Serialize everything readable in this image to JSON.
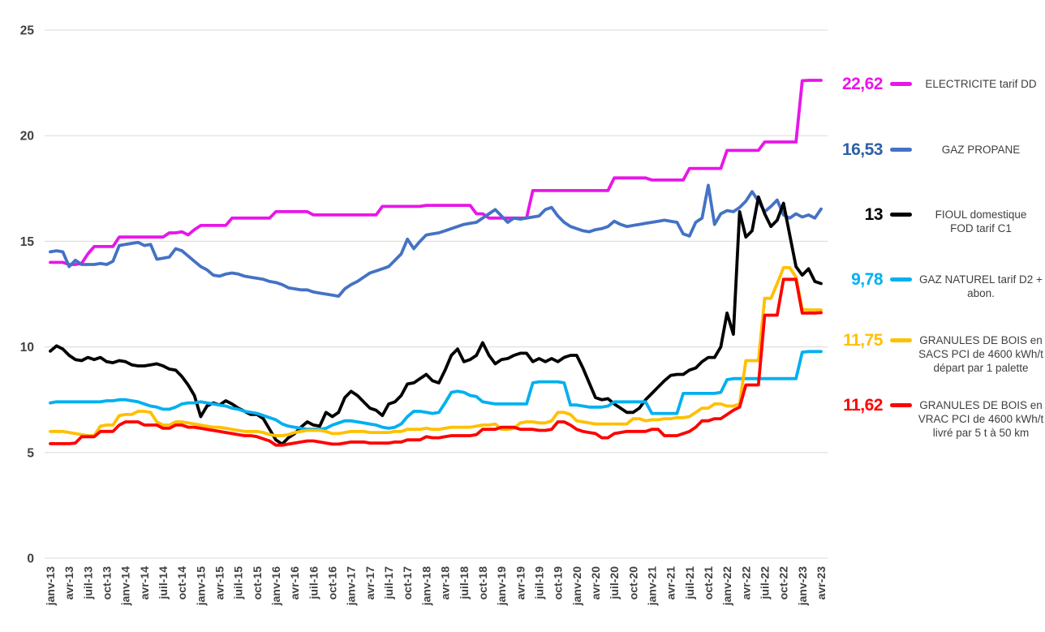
{
  "chart_data": {
    "type": "line",
    "title": "",
    "xlabel": "",
    "ylabel": "",
    "ylim": [
      0,
      25
    ],
    "y_ticks": [
      0,
      5,
      10,
      15,
      20,
      25
    ],
    "grid": "horizontal",
    "legend_position": "right",
    "n_points": 124,
    "tick_every": 3,
    "x_tick_labels": [
      "janv-13",
      "avr-13",
      "juil-13",
      "oct-13",
      "janv-14",
      "avr-14",
      "juil-14",
      "oct-14",
      "janv-15",
      "avr-15",
      "juil-15",
      "oct-15",
      "janv-16",
      "avr-16",
      "juil-16",
      "oct-16",
      "janv-17",
      "avr-17",
      "juil-17",
      "oct-17",
      "janv-18",
      "avr-18",
      "juil-18",
      "oct-18",
      "janv-19",
      "avr-19",
      "juil-19",
      "oct-19",
      "janv-20",
      "avr-20",
      "juil-20",
      "oct-20",
      "janv-21",
      "avr-21",
      "juil-21",
      "oct-21",
      "janv-22",
      "avr-22",
      "juil-22",
      "oct-22",
      "janv-23",
      "avr-23"
    ],
    "series": [
      {
        "key": "electricite",
        "name": "ELECTRICITE tarif DD",
        "color": "#E816E8",
        "final_value_label": "22,62",
        "values": [
          14.0,
          14.0,
          14.0,
          13.9,
          13.9,
          13.95,
          14.4,
          14.75,
          14.75,
          14.75,
          14.75,
          15.2,
          15.2,
          15.2,
          15.2,
          15.2,
          15.2,
          15.2,
          15.2,
          15.4,
          15.4,
          15.45,
          15.3,
          15.55,
          15.75,
          15.75,
          15.75,
          15.75,
          15.75,
          16.1,
          16.1,
          16.1,
          16.1,
          16.1,
          16.1,
          16.1,
          16.4,
          16.4,
          16.4,
          16.4,
          16.4,
          16.4,
          16.25,
          16.25,
          16.25,
          16.25,
          16.25,
          16.25,
          16.25,
          16.25,
          16.25,
          16.25,
          16.25,
          16.65,
          16.65,
          16.65,
          16.65,
          16.65,
          16.65,
          16.65,
          16.7,
          16.7,
          16.7,
          16.7,
          16.7,
          16.7,
          16.7,
          16.7,
          16.3,
          16.3,
          16.1,
          16.1,
          16.1,
          16.1,
          16.1,
          16.1,
          16.1,
          17.4,
          17.4,
          17.4,
          17.4,
          17.4,
          17.4,
          17.4,
          17.4,
          17.4,
          17.4,
          17.4,
          17.4,
          17.4,
          18.0,
          18.0,
          18.0,
          18.0,
          18.0,
          18.0,
          17.9,
          17.9,
          17.9,
          17.9,
          17.9,
          17.9,
          18.45,
          18.45,
          18.45,
          18.45,
          18.45,
          18.45,
          19.3,
          19.3,
          19.3,
          19.3,
          19.3,
          19.3,
          19.7,
          19.7,
          19.7,
          19.7,
          19.7,
          19.7,
          22.6,
          22.62,
          22.62,
          22.62
        ]
      },
      {
        "key": "gaz-propane",
        "name": "GAZ PROPANE",
        "color": "#4472C4",
        "value_color": "#2E5FA8",
        "final_value_label": "16,53",
        "values": [
          14.5,
          14.55,
          14.5,
          13.8,
          14.1,
          13.9,
          13.9,
          13.9,
          13.95,
          13.9,
          14.05,
          14.8,
          14.85,
          14.9,
          14.95,
          14.8,
          14.85,
          14.15,
          14.2,
          14.25,
          14.65,
          14.55,
          14.3,
          14.05,
          13.8,
          13.65,
          13.4,
          13.35,
          13.45,
          13.5,
          13.45,
          13.35,
          13.3,
          13.25,
          13.2,
          13.1,
          13.05,
          12.95,
          12.8,
          12.75,
          12.7,
          12.7,
          12.6,
          12.55,
          12.5,
          12.45,
          12.4,
          12.75,
          12.95,
          13.1,
          13.3,
          13.5,
          13.6,
          13.7,
          13.8,
          14.1,
          14.4,
          15.1,
          14.65,
          15.0,
          15.3,
          15.35,
          15.4,
          15.5,
          15.6,
          15.7,
          15.8,
          15.85,
          15.9,
          16.1,
          16.3,
          16.5,
          16.2,
          15.9,
          16.1,
          16.05,
          16.1,
          16.15,
          16.2,
          16.5,
          16.6,
          16.2,
          15.9,
          15.7,
          15.6,
          15.5,
          15.45,
          15.55,
          15.6,
          15.7,
          15.95,
          15.8,
          15.7,
          15.75,
          15.8,
          15.85,
          15.9,
          15.95,
          16.0,
          15.95,
          15.9,
          15.35,
          15.25,
          15.9,
          16.1,
          17.65,
          15.8,
          16.3,
          16.45,
          16.4,
          16.6,
          16.9,
          17.35,
          16.9,
          16.4,
          16.65,
          16.95,
          16.25,
          16.1,
          16.3,
          16.15,
          16.25,
          16.1,
          16.53
        ]
      },
      {
        "key": "fioul",
        "name": "FIOUL domestique FOD tarif C1",
        "color": "#000000",
        "final_value_label": "13",
        "values": [
          9.8,
          10.05,
          9.9,
          9.6,
          9.4,
          9.35,
          9.5,
          9.4,
          9.5,
          9.3,
          9.25,
          9.35,
          9.3,
          9.15,
          9.1,
          9.1,
          9.15,
          9.2,
          9.1,
          8.95,
          8.9,
          8.6,
          8.2,
          7.7,
          6.7,
          7.2,
          7.35,
          7.25,
          7.45,
          7.3,
          7.1,
          6.95,
          6.8,
          6.8,
          6.6,
          6.1,
          5.6,
          5.4,
          5.7,
          5.9,
          6.2,
          6.45,
          6.3,
          6.25,
          6.9,
          6.7,
          6.9,
          7.6,
          7.9,
          7.7,
          7.4,
          7.1,
          7.0,
          6.75,
          7.3,
          7.4,
          7.7,
          8.25,
          8.3,
          8.5,
          8.7,
          8.4,
          8.3,
          8.9,
          9.6,
          9.9,
          9.3,
          9.4,
          9.6,
          10.2,
          9.6,
          9.2,
          9.4,
          9.45,
          9.6,
          9.7,
          9.7,
          9.3,
          9.45,
          9.3,
          9.45,
          9.3,
          9.5,
          9.6,
          9.6,
          9.0,
          8.3,
          7.6,
          7.5,
          7.55,
          7.3,
          7.1,
          6.9,
          6.9,
          7.1,
          7.5,
          7.8,
          8.1,
          8.4,
          8.65,
          8.7,
          8.7,
          8.9,
          9.0,
          9.3,
          9.5,
          9.5,
          10.0,
          11.6,
          10.6,
          16.4,
          15.2,
          15.5,
          17.1,
          16.3,
          15.7,
          16.0,
          16.8,
          15.3,
          13.8,
          13.4,
          13.7,
          13.1,
          13.0
        ]
      },
      {
        "key": "gaz-naturel",
        "name": "GAZ NATUREL tarif D2 + abon.",
        "color": "#00B0F0",
        "final_value_label": "9,78",
        "values": [
          7.35,
          7.4,
          7.4,
          7.4,
          7.4,
          7.4,
          7.4,
          7.4,
          7.4,
          7.45,
          7.45,
          7.5,
          7.5,
          7.45,
          7.4,
          7.3,
          7.2,
          7.15,
          7.05,
          7.05,
          7.15,
          7.3,
          7.35,
          7.35,
          7.4,
          7.35,
          7.3,
          7.25,
          7.2,
          7.1,
          7.05,
          6.95,
          6.9,
          6.85,
          6.75,
          6.65,
          6.55,
          6.35,
          6.25,
          6.2,
          6.15,
          6.1,
          6.1,
          6.1,
          6.15,
          6.3,
          6.4,
          6.5,
          6.5,
          6.45,
          6.4,
          6.35,
          6.3,
          6.2,
          6.15,
          6.2,
          6.35,
          6.7,
          6.95,
          6.95,
          6.9,
          6.85,
          6.9,
          7.35,
          7.85,
          7.9,
          7.85,
          7.7,
          7.65,
          7.4,
          7.35,
          7.3,
          7.3,
          7.3,
          7.3,
          7.3,
          7.3,
          8.3,
          8.35,
          8.35,
          8.35,
          8.35,
          8.3,
          7.25,
          7.25,
          7.2,
          7.15,
          7.15,
          7.15,
          7.2,
          7.4,
          7.4,
          7.4,
          7.4,
          7.4,
          7.4,
          6.85,
          6.85,
          6.85,
          6.85,
          6.85,
          7.8,
          7.8,
          7.8,
          7.8,
          7.8,
          7.8,
          7.85,
          8.45,
          8.5,
          8.5,
          8.5,
          8.5,
          8.5,
          8.5,
          8.5,
          8.5,
          8.5,
          8.5,
          8.5,
          9.75,
          9.78,
          9.78,
          9.78
        ]
      },
      {
        "key": "granules-sacs",
        "name": "GRANULES DE BOIS en SACS PCI de 4600 kWh/t départ par 1 palette",
        "color": "#FFC000",
        "final_value_label": "11,75",
        "values": [
          6.0,
          6.0,
          6.0,
          5.95,
          5.9,
          5.85,
          5.8,
          5.8,
          6.25,
          6.3,
          6.3,
          6.75,
          6.8,
          6.8,
          6.95,
          6.95,
          6.9,
          6.45,
          6.3,
          6.3,
          6.45,
          6.45,
          6.4,
          6.35,
          6.3,
          6.25,
          6.2,
          6.2,
          6.15,
          6.1,
          6.05,
          6.0,
          6.0,
          6.0,
          5.95,
          5.85,
          5.8,
          5.8,
          5.85,
          5.95,
          6.0,
          6.05,
          6.05,
          6.05,
          6.0,
          5.9,
          5.9,
          5.95,
          6.0,
          6.0,
          6.0,
          5.95,
          5.95,
          5.95,
          5.95,
          6.0,
          6.0,
          6.1,
          6.1,
          6.1,
          6.15,
          6.1,
          6.1,
          6.15,
          6.2,
          6.2,
          6.2,
          6.2,
          6.25,
          6.3,
          6.3,
          6.35,
          6.1,
          6.1,
          6.15,
          6.4,
          6.45,
          6.45,
          6.4,
          6.4,
          6.5,
          6.9,
          6.9,
          6.8,
          6.5,
          6.45,
          6.4,
          6.35,
          6.35,
          6.35,
          6.35,
          6.35,
          6.35,
          6.6,
          6.6,
          6.5,
          6.55,
          6.55,
          6.6,
          6.6,
          6.65,
          6.65,
          6.7,
          6.9,
          7.1,
          7.1,
          7.3,
          7.3,
          7.2,
          7.2,
          7.3,
          9.35,
          9.35,
          9.35,
          12.3,
          12.3,
          13.0,
          13.75,
          13.75,
          13.3,
          11.77,
          11.75,
          11.75,
          11.75
        ]
      },
      {
        "key": "granules-vrac",
        "name": "GRANULES DE BOIS en VRAC  PCI de 4600 kWh/t livré par 5 t à 50 km",
        "color": "#FF0000",
        "final_value_label": "11,62",
        "values": [
          5.42,
          5.42,
          5.42,
          5.42,
          5.45,
          5.75,
          5.75,
          5.75,
          6.0,
          6.0,
          6.0,
          6.3,
          6.45,
          6.45,
          6.45,
          6.3,
          6.3,
          6.3,
          6.15,
          6.15,
          6.3,
          6.3,
          6.2,
          6.2,
          6.15,
          6.1,
          6.05,
          6.0,
          5.95,
          5.9,
          5.85,
          5.8,
          5.8,
          5.75,
          5.65,
          5.55,
          5.35,
          5.35,
          5.4,
          5.45,
          5.5,
          5.55,
          5.55,
          5.5,
          5.45,
          5.4,
          5.4,
          5.45,
          5.5,
          5.5,
          5.5,
          5.45,
          5.45,
          5.45,
          5.45,
          5.5,
          5.5,
          5.6,
          5.6,
          5.6,
          5.75,
          5.7,
          5.7,
          5.75,
          5.8,
          5.8,
          5.8,
          5.8,
          5.85,
          6.1,
          6.1,
          6.1,
          6.2,
          6.2,
          6.2,
          6.1,
          6.1,
          6.1,
          6.05,
          6.05,
          6.1,
          6.45,
          6.45,
          6.3,
          6.1,
          6.0,
          5.95,
          5.9,
          5.7,
          5.7,
          5.9,
          5.95,
          6.0,
          6.0,
          6.0,
          6.0,
          6.1,
          6.1,
          5.8,
          5.8,
          5.8,
          5.9,
          6.0,
          6.2,
          6.5,
          6.5,
          6.6,
          6.6,
          6.8,
          7.0,
          7.15,
          8.2,
          8.2,
          8.2,
          11.5,
          11.5,
          11.5,
          13.2,
          13.2,
          13.2,
          11.6,
          11.6,
          11.6,
          11.62
        ]
      }
    ]
  },
  "legend": {
    "entries": [
      {
        "key": "electricite",
        "value": "22,62",
        "value_color": "#E816E8",
        "swatch_color": "#E816E8",
        "label_lines": [
          "ELECTRICITE tarif DD"
        ]
      },
      {
        "key": "gaz-propane",
        "value": "16,53",
        "value_color": "#2E5FA8",
        "swatch_color": "#4472C4",
        "label_lines": [
          "GAZ PROPANE"
        ]
      },
      {
        "key": "fioul",
        "value": "13",
        "value_color": "#000000",
        "swatch_color": "#000000",
        "label_lines": [
          "FIOUL domestique",
          "FOD tarif C1"
        ]
      },
      {
        "key": "gaz-naturel",
        "value": "9,78",
        "value_color": "#00B0F0",
        "swatch_color": "#00B0F0",
        "label_lines": [
          "GAZ NATUREL tarif D2 +",
          "abon."
        ]
      },
      {
        "key": "granules-sacs",
        "value": "11,75",
        "value_color": "#FFC000",
        "swatch_color": "#FFC000",
        "label_lines": [
          "GRANULES DE BOIS en",
          "SACS PCI de 4600 kWh/t",
          "départ par 1 palette"
        ]
      },
      {
        "key": "granules-vrac",
        "value": "11,62",
        "value_color": "#FF0000",
        "swatch_color": "#FF0000",
        "label_lines": [
          "GRANULES DE BOIS en",
          "VRAC  PCI de 4600 kWh/t",
          "livré par 5 t à 50 km"
        ]
      }
    ]
  },
  "colors": {
    "background": "#FFFFFF",
    "gridline": "#D9D9D9",
    "axis_text": "#404040"
  }
}
